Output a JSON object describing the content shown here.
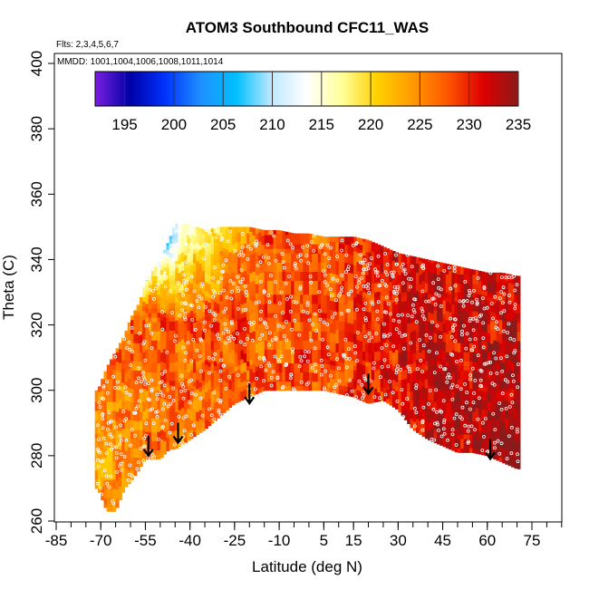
{
  "chart_data": {
    "type": "heatmap",
    "title": "ATOM3 Southbound CFC11_WAS",
    "flights_note": "Flts: 2,3,4,5,6,7",
    "dates_note": "MMDD: 1001,1004,1006,1008,1011,1014",
    "xlabel": "Latitude (deg N)",
    "ylabel": "Theta (C)",
    "xlim": [
      -85,
      85
    ],
    "ylim": [
      260,
      400
    ],
    "x_ticks": [
      -85,
      -70,
      -55,
      -40,
      -25,
      -10,
      5,
      15,
      30,
      45,
      60,
      75
    ],
    "x_tick_labels": [
      "-85",
      "-70",
      "-55",
      "-40",
      "-25",
      "-10",
      "5",
      "15",
      "30",
      "45",
      "60",
      "75"
    ],
    "y_ticks": [
      260,
      280,
      300,
      320,
      340,
      360,
      380,
      400
    ],
    "y_tick_labels": [
      "260",
      "280",
      "300",
      "320",
      "340",
      "360",
      "380",
      "400"
    ],
    "colorbar": {
      "min": 192,
      "max": 235,
      "ticks": [
        195,
        200,
        205,
        210,
        215,
        220,
        225,
        230,
        235
      ],
      "tick_labels": [
        "195",
        "200",
        "205",
        "210",
        "215",
        "220",
        "225",
        "230",
        "235"
      ],
      "colors": [
        "#7a1fe0",
        "#0000a8",
        "#0033ff",
        "#1e90ff",
        "#00bfff",
        "#bfe8ff",
        "#ffffff",
        "#ffff99",
        "#ffd000",
        "#ff9a00",
        "#ff5500",
        "#dd0000",
        "#8b1a1a"
      ]
    },
    "coverage": {
      "lat": [
        -71,
        -68,
        -65,
        -62,
        -60,
        -57,
        -55,
        -50,
        -47,
        -45,
        -40,
        -35,
        -30,
        -25,
        -20,
        -15,
        -10,
        -5,
        0,
        5,
        10,
        15,
        20,
        25,
        30,
        35,
        40,
        45,
        50,
        55,
        60,
        65,
        70
      ],
      "theta_bottom": [
        270,
        263,
        263,
        270,
        272,
        276,
        279,
        279,
        282,
        282,
        285,
        288,
        292,
        296,
        298,
        300,
        300,
        300,
        300,
        300,
        299,
        298,
        296,
        297,
        294,
        288,
        285,
        283,
        281,
        281,
        280,
        278,
        276
      ],
      "theta_top": [
        300,
        307,
        312,
        317,
        322,
        327,
        333,
        340,
        346,
        351,
        351,
        349,
        350,
        350,
        350,
        349,
        349,
        348,
        348,
        347,
        347,
        347,
        346,
        344,
        342,
        341,
        340,
        339,
        338,
        337,
        336,
        336,
        335
      ]
    },
    "arrows": [
      {
        "lat": -54,
        "theta": 280
      },
      {
        "lat": -44,
        "theta": 284
      },
      {
        "lat": -20,
        "theta": 296
      },
      {
        "lat": 20,
        "theta": 299
      },
      {
        "lat": 61,
        "theta": 279
      }
    ]
  }
}
